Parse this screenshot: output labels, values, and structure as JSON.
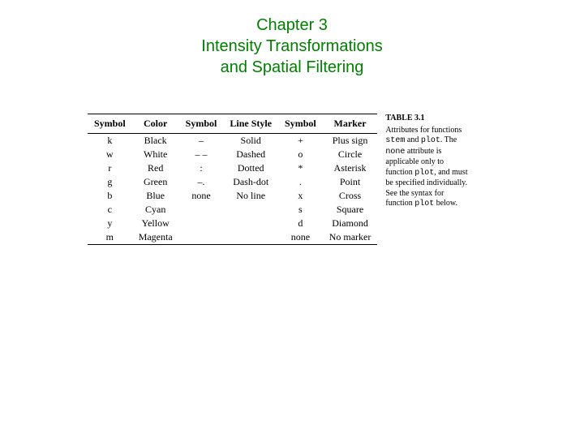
{
  "title": {
    "line1": "Chapter 3",
    "line2": "Intensity Transformations",
    "line3": "and Spatial Filtering",
    "color": "#008000",
    "fontsize": 20
  },
  "table": {
    "type": "table",
    "border_color": "#000000",
    "header_fontweight": "bold",
    "fontsize": 12,
    "background_color": "#ffffff",
    "columns": [
      "Symbol",
      "Color",
      "Symbol",
      "Line Style",
      "Symbol",
      "Marker"
    ],
    "rows": [
      [
        "k",
        "Black",
        "–",
        "Solid",
        "+",
        "Plus sign"
      ],
      [
        "w",
        "White",
        "– –",
        "Dashed",
        "o",
        "Circle"
      ],
      [
        "r",
        "Red",
        ":",
        "Dotted",
        "*",
        "Asterisk"
      ],
      [
        "g",
        "Green",
        "–.",
        "Dash-dot",
        ".",
        "Point"
      ],
      [
        "b",
        "Blue",
        "none",
        "No line",
        "x",
        "Cross"
      ],
      [
        "c",
        "Cyan",
        "",
        "",
        "s",
        "Square"
      ],
      [
        "y",
        "Yellow",
        "",
        "",
        "d",
        "Diamond"
      ],
      [
        "m",
        "Magenta",
        "",
        "",
        "none",
        "No marker"
      ]
    ]
  },
  "caption": {
    "title": "TABLE 3.1",
    "body_parts": [
      "Attributes for functions ",
      "stem",
      " and ",
      "plot",
      ". The ",
      "none",
      " attribute is applicable only to function ",
      "plot",
      ", and must be specified individually. See the syntax for function ",
      "plot",
      " below."
    ],
    "fontsize": 10
  }
}
